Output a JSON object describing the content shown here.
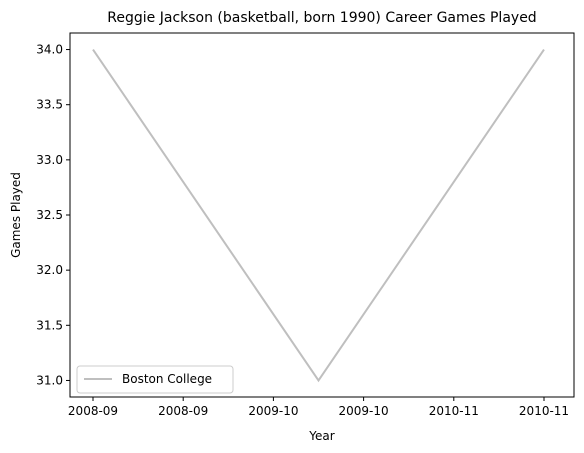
{
  "chart_data": {
    "type": "line",
    "title": "Reggie Jackson (basketball, born 1990) Career Games Played",
    "xlabel": "Year",
    "ylabel": "Games Played",
    "x_tick_labels": [
      "2008-09",
      "2008-09",
      "2009-10",
      "2009-10",
      "2010-11",
      "2010-11"
    ],
    "y_ticks": [
      31.0,
      31.5,
      32.0,
      32.5,
      33.0,
      33.5,
      34.0
    ],
    "ylim": [
      30.85,
      34.15
    ],
    "grid": false,
    "legend_position": "lower-left",
    "series": [
      {
        "name": "Boston College",
        "color": "#bfbfbf",
        "points": [
          {
            "x": "2008-09",
            "y": 34
          },
          {
            "x": "2009-10",
            "y": 31
          },
          {
            "x": "2010-11",
            "y": 34
          }
        ]
      }
    ]
  }
}
